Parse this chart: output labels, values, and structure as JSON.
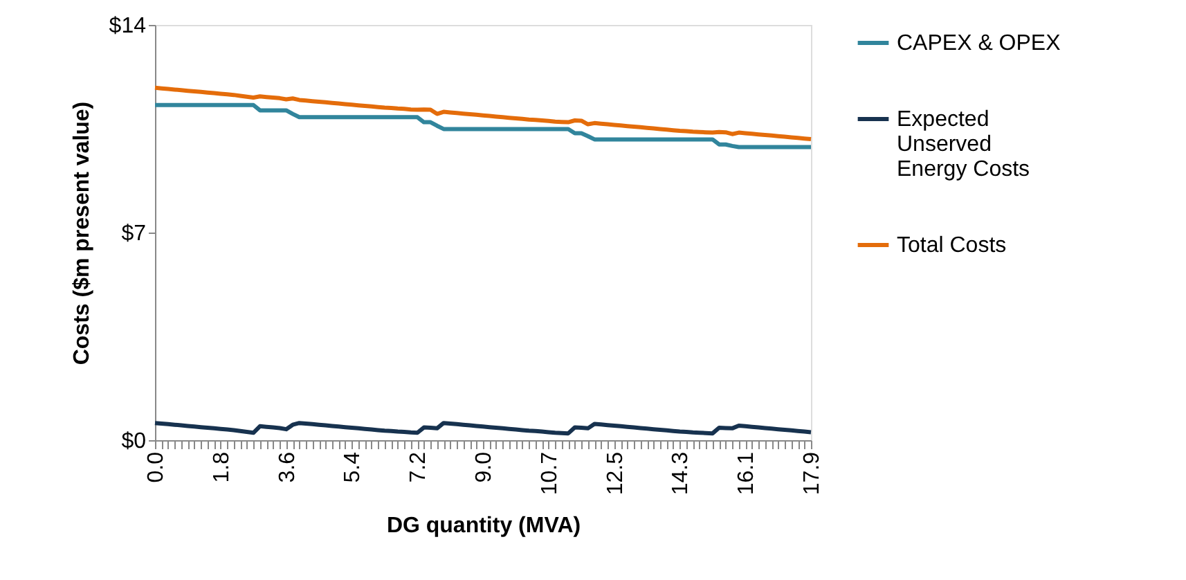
{
  "chart_data": {
    "type": "line",
    "xlabel": "DG quantity (MVA)",
    "ylabel": "Costs ($m present value)",
    "categories": [
      "0.0",
      null,
      null,
      null,
      null,
      null,
      null,
      null,
      null,
      null,
      "1.8",
      null,
      null,
      null,
      null,
      null,
      null,
      null,
      null,
      null,
      "3.6",
      null,
      null,
      null,
      null,
      null,
      null,
      null,
      null,
      null,
      "5.4",
      null,
      null,
      null,
      null,
      null,
      null,
      null,
      null,
      null,
      "7.2",
      null,
      null,
      null,
      null,
      null,
      null,
      null,
      null,
      null,
      "9.0",
      null,
      null,
      null,
      null,
      null,
      null,
      null,
      null,
      null,
      "10.7",
      null,
      null,
      null,
      null,
      null,
      null,
      null,
      null,
      null,
      "12.5",
      null,
      null,
      null,
      null,
      null,
      null,
      null,
      null,
      null,
      "14.3",
      null,
      null,
      null,
      null,
      null,
      null,
      null,
      null,
      null,
      "16.1",
      null,
      null,
      null,
      null,
      null,
      null,
      null,
      null,
      null,
      "17.9"
    ],
    "ylim": [
      0,
      14
    ],
    "yticks": [
      {
        "value": 0,
        "label": "$0"
      },
      {
        "value": 7,
        "label": "$7"
      },
      {
        "value": 14,
        "label": "$14"
      }
    ],
    "grid": false,
    "legend": "right",
    "marker": "none",
    "line_style": "solid",
    "series": [
      {
        "name": "CAPEX & OPEX",
        "color": "#31859c",
        "values": [
          11.3,
          11.3,
          11.3,
          11.3,
          11.3,
          11.3,
          11.3,
          11.3,
          11.3,
          11.3,
          11.3,
          11.3,
          11.3,
          11.3,
          11.3,
          11.3,
          11.12,
          11.12,
          11.12,
          11.12,
          11.12,
          11.0,
          10.89,
          10.89,
          10.89,
          10.89,
          10.89,
          10.89,
          10.89,
          10.89,
          10.89,
          10.89,
          10.89,
          10.89,
          10.89,
          10.89,
          10.89,
          10.89,
          10.89,
          10.89,
          10.89,
          10.72,
          10.72,
          10.6,
          10.49,
          10.49,
          10.49,
          10.49,
          10.49,
          10.49,
          10.49,
          10.49,
          10.49,
          10.49,
          10.49,
          10.49,
          10.49,
          10.49,
          10.49,
          10.49,
          10.49,
          10.49,
          10.49,
          10.49,
          10.35,
          10.35,
          10.25,
          10.14,
          10.14,
          10.14,
          10.14,
          10.14,
          10.14,
          10.14,
          10.14,
          10.14,
          10.14,
          10.14,
          10.14,
          10.14,
          10.14,
          10.14,
          10.14,
          10.14,
          10.14,
          10.14,
          9.97,
          9.97,
          9.92,
          9.88,
          9.88,
          9.88,
          9.88,
          9.88,
          9.88,
          9.88,
          9.88,
          9.88,
          9.88,
          9.88,
          9.88
        ]
      },
      {
        "name": "Expected Unserved Energy Costs",
        "color": "#17324f",
        "values": [
          0.58,
          0.56,
          0.54,
          0.52,
          0.5,
          0.48,
          0.46,
          0.44,
          0.42,
          0.4,
          0.38,
          0.36,
          0.34,
          0.31,
          0.28,
          0.25,
          0.47,
          0.45,
          0.43,
          0.41,
          0.37,
          0.52,
          0.58,
          0.56,
          0.54,
          0.52,
          0.5,
          0.48,
          0.46,
          0.44,
          0.42,
          0.4,
          0.38,
          0.36,
          0.34,
          0.32,
          0.31,
          0.29,
          0.28,
          0.26,
          0.25,
          0.43,
          0.42,
          0.4,
          0.58,
          0.56,
          0.54,
          0.52,
          0.5,
          0.48,
          0.46,
          0.44,
          0.42,
          0.4,
          0.38,
          0.36,
          0.34,
          0.32,
          0.31,
          0.29,
          0.27,
          0.25,
          0.24,
          0.23,
          0.43,
          0.42,
          0.4,
          0.55,
          0.53,
          0.51,
          0.49,
          0.47,
          0.45,
          0.43,
          0.41,
          0.39,
          0.37,
          0.35,
          0.33,
          0.31,
          0.29,
          0.28,
          0.26,
          0.25,
          0.24,
          0.23,
          0.42,
          0.41,
          0.4,
          0.49,
          0.47,
          0.45,
          0.43,
          0.41,
          0.39,
          0.37,
          0.35,
          0.33,
          0.31,
          0.29,
          0.27
        ]
      },
      {
        "name": "Total Costs",
        "color": "#e46c0a",
        "values": [
          11.88,
          11.86,
          11.84,
          11.82,
          11.8,
          11.78,
          11.76,
          11.74,
          11.72,
          11.7,
          11.68,
          11.66,
          11.64,
          11.61,
          11.58,
          11.55,
          11.59,
          11.57,
          11.55,
          11.53,
          11.49,
          11.52,
          11.47,
          11.45,
          11.43,
          11.41,
          11.39,
          11.37,
          11.35,
          11.33,
          11.31,
          11.29,
          11.27,
          11.25,
          11.23,
          11.21,
          11.2,
          11.18,
          11.17,
          11.15,
          11.14,
          11.15,
          11.14,
          11.0,
          11.07,
          11.05,
          11.03,
          11.01,
          10.99,
          10.97,
          10.95,
          10.93,
          10.91,
          10.89,
          10.87,
          10.85,
          10.83,
          10.81,
          10.8,
          10.78,
          10.76,
          10.74,
          10.73,
          10.72,
          10.78,
          10.77,
          10.65,
          10.69,
          10.67,
          10.65,
          10.63,
          10.61,
          10.59,
          10.57,
          10.55,
          10.53,
          10.51,
          10.49,
          10.47,
          10.45,
          10.43,
          10.42,
          10.4,
          10.39,
          10.38,
          10.37,
          10.39,
          10.38,
          10.32,
          10.37,
          10.35,
          10.33,
          10.31,
          10.29,
          10.27,
          10.25,
          10.23,
          10.21,
          10.19,
          10.17,
          10.15
        ]
      }
    ]
  }
}
